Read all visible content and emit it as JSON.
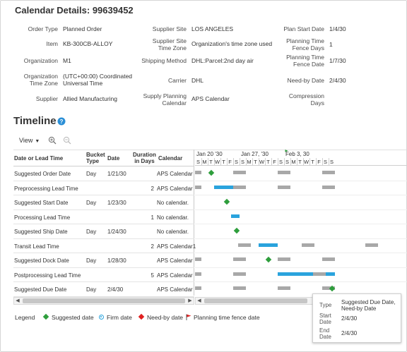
{
  "page": {
    "title": "Calendar Details: 99639452"
  },
  "details": {
    "col1": [
      {
        "label": "Order Type",
        "value": "Planned Order"
      },
      {
        "label": "Item",
        "value": "KB-300CB-ALLOY"
      },
      {
        "label": "Organization",
        "value": "M1"
      },
      {
        "label_l1": "Organization",
        "label_l2": "Time Zone",
        "value_l1": "(UTC+00:00) Coordinated",
        "value_l2": "Universal Time"
      },
      {
        "label": "Supplier",
        "value": "Allied Manufacturing"
      }
    ],
    "col2": [
      {
        "label": "Supplier Site",
        "value": "LOS ANGELES"
      },
      {
        "label_l1": "Supplier Site",
        "label_l2": "Time Zone",
        "value": "Organization's time zone used"
      },
      {
        "label": "Shipping Method",
        "value": "DHL:Parcel:2nd day air"
      },
      {
        "label": "Carrier",
        "value": "DHL"
      },
      {
        "label_l1": "Supply Planning",
        "label_l2": "Calendar",
        "value": "APS Calendar"
      }
    ],
    "col3": [
      {
        "label": "Plan Start Date",
        "value": "1/4/30"
      },
      {
        "label_l1": "Planning Time",
        "label_l2": "Fence Days",
        "value": "1"
      },
      {
        "label_l1": "Planning Time",
        "label_l2": "Fence Date",
        "value": "1/7/30"
      },
      {
        "label": "Need-by Date",
        "value": "2/4/30"
      },
      {
        "label_l1": "Compression",
        "label_l2": "Days",
        "value": ""
      }
    ]
  },
  "timeline": {
    "title": "Timeline",
    "help_icon": "help-circle-icon",
    "toolbar": {
      "view_label": "View",
      "zoom_in_icon": "zoom-in-icon",
      "zoom_out_icon": "zoom-out-icon"
    },
    "columns": {
      "name": "Date or Lead Time",
      "bucket_l1": "Bucket",
      "bucket_l2": "Type",
      "date": "Date",
      "duration_l1": "Duration",
      "duration_l2": "in Days",
      "calendar": "Calendar"
    },
    "rows": [
      {
        "name": "Suggested Order Date",
        "bucket": "Day",
        "date": "1/21/30",
        "duration": "",
        "calendar": "APS Calendar"
      },
      {
        "name": "Preprocessing Lead Time",
        "bucket": "",
        "date": "",
        "duration": "2",
        "calendar": "APS Calendar"
      },
      {
        "name": "Suggested Start Date",
        "bucket": "Day",
        "date": "1/23/30",
        "duration": "",
        "calendar": "No calendar."
      },
      {
        "name": "Processing Lead Time",
        "bucket": "",
        "date": "",
        "duration": "1",
        "calendar": "No calendar."
      },
      {
        "name": "Suggested Ship Date",
        "bucket": "Day",
        "date": "1/24/30",
        "duration": "",
        "calendar": "No calendar."
      },
      {
        "name": "Transit Lead Time",
        "bucket": "",
        "date": "",
        "duration": "2",
        "calendar": "APS Calendar1"
      },
      {
        "name": "Suggested Dock Date",
        "bucket": "Day",
        "date": "1/28/30",
        "duration": "",
        "calendar": "APS Calendar"
      },
      {
        "name": "Postprocessing Lead Time",
        "bucket": "",
        "date": "",
        "duration": "5",
        "calendar": "APS Calendar"
      },
      {
        "name": "Suggested Due Date",
        "bucket": "Day",
        "date": "2/4/30",
        "duration": "",
        "calendar": "APS Calendar"
      }
    ],
    "gantt": {
      "weeks": [
        "Jan 20 '30",
        "Jan 27, '30",
        "Feb 3, 30"
      ],
      "days": [
        "S",
        "M",
        "T",
        "W",
        "T",
        "F",
        "S",
        "S",
        "M",
        "T",
        "W",
        "T",
        "F",
        "S",
        "S",
        "M",
        "T",
        "W",
        "T",
        "F",
        "S",
        "S"
      ],
      "colors": {
        "nonworking": "#a8a8a8",
        "leadtime": "#2aa3dd",
        "suggested": "#2e9e3c"
      }
    },
    "legend": {
      "title": "Legend",
      "items": [
        {
          "label": "Suggested date",
          "icon": "green-diamond-icon",
          "color": "#2e9e3c"
        },
        {
          "label": "Firm date",
          "icon": "blue-circle-icon",
          "color": "#2aa3dd"
        },
        {
          "label": "Need-by date",
          "icon": "red-diamond-icon",
          "color": "#e02020"
        },
        {
          "label": "Planning time fence date",
          "icon": "red-flag-icon",
          "color": "#e02020"
        }
      ]
    },
    "tooltip": {
      "type_label": "Type",
      "type_value_l1": "Suggested Due Date,",
      "type_value_l2": "Need-by Date",
      "start_label_l1": "Start",
      "start_label_l2": "Date",
      "start_value": "2/4/30",
      "end_label_l1": "End",
      "end_label_l2": "Date",
      "end_value": "2/4/30"
    }
  }
}
